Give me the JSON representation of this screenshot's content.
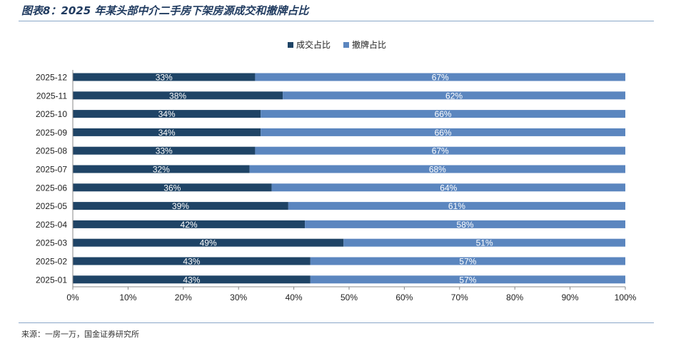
{
  "title": "图表8：2025 年某头部中介二手房下架房源成交和撤牌占比",
  "source": "来源：一房一万，国金证券研究所",
  "chart_data": {
    "type": "bar",
    "orientation": "horizontal",
    "stacked": true,
    "categories": [
      "2025-12",
      "2025-11",
      "2025-10",
      "2025-09",
      "2025-08",
      "2025-07",
      "2025-06",
      "2025-05",
      "2025-04",
      "2025-03",
      "2025-02",
      "2025-01"
    ],
    "series": [
      {
        "name": "成交占比",
        "color": "#1f4466",
        "values": [
          33,
          38,
          34,
          34,
          33,
          32,
          36,
          39,
          42,
          49,
          43,
          43
        ],
        "labels": [
          "33%",
          "38%",
          "34%",
          "34%",
          "33%",
          "32%",
          "36%",
          "39%",
          "42%",
          "49%",
          "43%",
          "43%"
        ]
      },
      {
        "name": "撤牌占比",
        "color": "#5b86bf",
        "values": [
          67,
          62,
          66,
          66,
          67,
          68,
          64,
          61,
          58,
          51,
          57,
          57
        ],
        "labels": [
          "67%",
          "62%",
          "66%",
          "66%",
          "67%",
          "68%",
          "64%",
          "61%",
          "58%",
          "51%",
          "57%",
          "57%"
        ]
      }
    ],
    "xlim": [
      0,
      100
    ],
    "x_ticks": [
      "0%",
      "10%",
      "20%",
      "30%",
      "40%",
      "50%",
      "60%",
      "70%",
      "80%",
      "90%",
      "100%"
    ],
    "legend_position": "top-center",
    "grid": false
  }
}
